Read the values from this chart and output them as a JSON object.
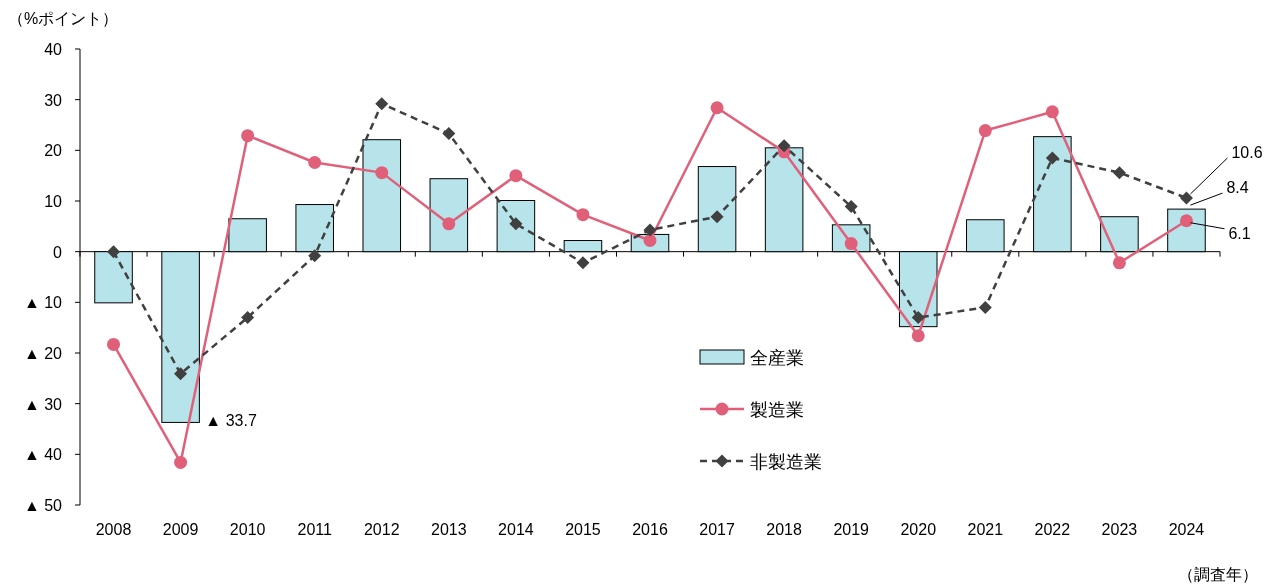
{
  "chart_data": {
    "type": "bar",
    "ylabel": "（%ポイント）",
    "xlabel": "（調査年）",
    "categories": [
      "2008",
      "2009",
      "2010",
      "2011",
      "2012",
      "2013",
      "2014",
      "2015",
      "2016",
      "2017",
      "2018",
      "2019",
      "2020",
      "2021",
      "2022",
      "2023",
      "2024"
    ],
    "ylim": [
      -50,
      40
    ],
    "yticks": [
      {
        "value": -50,
        "label": "▲ 50"
      },
      {
        "value": -40,
        "label": "▲ 40"
      },
      {
        "value": -30,
        "label": "▲ 30"
      },
      {
        "value": -20,
        "label": "▲ 20"
      },
      {
        "value": -10,
        "label": "▲ 10"
      },
      0,
      10,
      20,
      30,
      40
    ],
    "legend": "bottom",
    "annotations": [
      "▲ 33.7"
    ],
    "series": [
      {
        "name": "全産業",
        "type": "bar",
        "color": "#b7e3ea",
        "values": [
          -10.1,
          -33.7,
          6.5,
          9.3,
          22.1,
          14.4,
          10.1,
          2.2,
          3.4,
          16.8,
          20.5,
          5.3,
          -14.8,
          6.3,
          22.7,
          6.9,
          8.4
        ],
        "value_labels": [
          null,
          null,
          null,
          null,
          null,
          null,
          null,
          null,
          null,
          null,
          null,
          null,
          null,
          null,
          null,
          null,
          "8.4"
        ]
      },
      {
        "name": "製造業",
        "type": "line",
        "color": "#e0607a",
        "marker": "circle",
        "line_style": "solid",
        "values": [
          -18.3,
          -41.6,
          22.9,
          17.6,
          15.6,
          5.5,
          15.0,
          7.3,
          2.2,
          28.4,
          19.7,
          1.6,
          -16.6,
          23.9,
          27.6,
          -2.2,
          6.1
        ],
        "value_labels": [
          null,
          null,
          null,
          null,
          null,
          null,
          null,
          null,
          null,
          null,
          null,
          null,
          null,
          null,
          null,
          null,
          "6.1"
        ]
      },
      {
        "name": "非製造業",
        "type": "line",
        "color": "#404040",
        "marker": "diamond",
        "line_style": "dashed",
        "values": [
          0,
          -24.1,
          -13.0,
          -0.8,
          29.2,
          23.3,
          5.5,
          -2.2,
          4.3,
          6.9,
          20.9,
          8.9,
          -13.0,
          -11.0,
          18.5,
          15.6,
          10.6
        ],
        "value_labels": [
          null,
          null,
          null,
          null,
          null,
          null,
          null,
          null,
          null,
          null,
          null,
          null,
          null,
          null,
          null,
          null,
          "10.6"
        ]
      }
    ]
  }
}
